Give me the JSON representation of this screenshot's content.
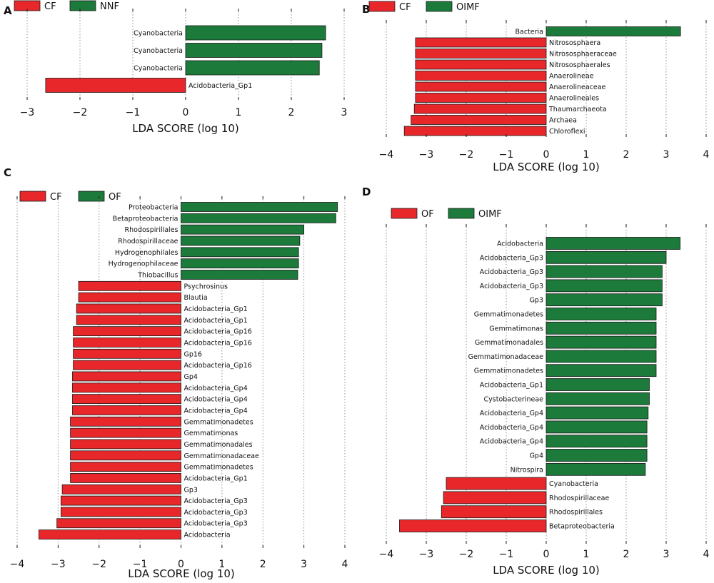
{
  "colors": {
    "negative": "#e8272b",
    "positive": "#1c7a3a",
    "stroke": "#1a1a1a",
    "grid": "#888888"
  },
  "chart_data": [
    {
      "type": "bar",
      "orientation": "horizontal",
      "panel": "A",
      "xlabel": "LDA SCORE (log 10)",
      "xlim": [
        -3,
        3
      ],
      "xticks": [
        -3,
        -2,
        -1,
        0,
        1,
        2,
        3
      ],
      "xtick_labels": [
        "−3",
        "−2",
        "−1",
        "0",
        "1",
        "2",
        "3"
      ],
      "legend": [
        {
          "label": "CF",
          "color": "#e8272b"
        },
        {
          "label": "NNF",
          "color": "#1c7a3a"
        }
      ],
      "categories": [
        "Cyanobacteria",
        "Cyanobacteria",
        "Cyanobacteria",
        "Acidobacteria_Gp1"
      ],
      "values": [
        2.65,
        2.58,
        2.53,
        -2.65
      ]
    },
    {
      "type": "bar",
      "orientation": "horizontal",
      "panel": "B",
      "xlabel": "LDA SCORE (log 10)",
      "xlim": [
        -4,
        4
      ],
      "xticks": [
        -4,
        -3,
        -2,
        -1,
        0,
        1,
        2,
        3,
        4
      ],
      "xtick_labels": [
        "−4",
        "−3",
        "−2",
        "−1",
        "0",
        "1",
        "2",
        "3",
        "4"
      ],
      "legend": [
        {
          "label": "CF",
          "color": "#e8272b"
        },
        {
          "label": "OIMF",
          "color": "#1c7a3a"
        }
      ],
      "categories": [
        "Bacteria",
        "Nitrososphaera",
        "Nitrososphaeraceae",
        "Nitrososphaerales",
        "Anaerolineae",
        "Anaerolineaceae",
        "Anaerolineales",
        "Thaumarchaeota",
        "Archaea",
        "Chloroflexi"
      ],
      "values": [
        3.36,
        -3.27,
        -3.27,
        -3.27,
        -3.27,
        -3.27,
        -3.27,
        -3.3,
        -3.38,
        -3.55
      ]
    },
    {
      "type": "bar",
      "orientation": "horizontal",
      "panel": "C",
      "xlabel": "LDA SCORE (log 10)",
      "xlim": [
        -4,
        4
      ],
      "xticks": [
        -4,
        -3,
        -2,
        -1,
        0,
        1,
        2,
        3,
        4
      ],
      "xtick_labels": [
        "−4",
        "−3",
        "−2",
        "−1",
        "0",
        "1",
        "2",
        "3",
        "4"
      ],
      "legend": [
        {
          "label": "CF",
          "color": "#e8272b"
        },
        {
          "label": "OF",
          "color": "#1c7a3a"
        }
      ],
      "categories": [
        "Proteobacteria",
        "Betaproteobacteria",
        "Rhodospirillales",
        "Rhodospirillaceae",
        "Hydrogenophilales",
        "Hydrogenophilaceae",
        "Thiobacillus",
        "Psychrosinus",
        "Blautia",
        "Acidobacteria_Gp1",
        "Acidobacteria_Gp1",
        "Acidobacteria_Gp16",
        "Acidobacteria_Gp16",
        "Gp16",
        "Acidobacteria_Gp16",
        "Gp4",
        "Acidobacteria_Gp4",
        "Acidobacteria_Gp4",
        "Acidobacteria_Gp4",
        "Gemmatimonadetes",
        "Gemmatimonas",
        "Gemmatimonadales",
        "Gemmatimonadaceae",
        "Gemmatimonadetes",
        "Acidobacteria_Gp1",
        "Gp3",
        "Acidobacteria_Gp3",
        "Acidobacteria_Gp3",
        "Acidobacteria_Gp3",
        "Acidobacteria"
      ],
      "values": [
        3.82,
        3.78,
        3.0,
        2.9,
        2.87,
        2.87,
        2.85,
        -2.5,
        -2.5,
        -2.55,
        -2.55,
        -2.63,
        -2.63,
        -2.63,
        -2.63,
        -2.65,
        -2.65,
        -2.65,
        -2.65,
        -2.7,
        -2.7,
        -2.7,
        -2.7,
        -2.7,
        -2.7,
        -2.9,
        -2.93,
        -2.93,
        -3.03,
        -3.47
      ]
    },
    {
      "type": "bar",
      "orientation": "horizontal",
      "panel": "D",
      "xlabel": "LDA SCORE (log 10)",
      "xlim": [
        -4,
        4
      ],
      "xticks": [
        -4,
        -3,
        -2,
        -1,
        0,
        1,
        2,
        3,
        4
      ],
      "xtick_labels": [
        "−4",
        "−3",
        "−2",
        "−1",
        "0",
        "1",
        "2",
        "3",
        "4"
      ],
      "legend": [
        {
          "label": "OF",
          "color": "#e8272b"
        },
        {
          "label": "OIMF",
          "color": "#1c7a3a"
        }
      ],
      "categories": [
        "Acidobacteria",
        "Acidobacteria_Gp3",
        "Acidobacteria_Gp3",
        "Acidobacteria_Gp3",
        "Gp3",
        "Gemmatimonadetes",
        "Gemmatimonas",
        "Gemmatimonadales",
        "Gemmatimonadaceae",
        "Gemmatimonadetes",
        "Acidobacteria_Gp1",
        "Cystobacterineae",
        "Acidobacteria_Gp4",
        "Acidobacteria_Gp4",
        "Acidobacteria_Gp4",
        "Gp4",
        "Nitrospira",
        "Cyanobacteria",
        "Rhodospirillaceae",
        "Rhodospirillales",
        "Betaproteobacteria"
      ],
      "values": [
        3.35,
        3.0,
        2.9,
        2.9,
        2.9,
        2.75,
        2.75,
        2.75,
        2.75,
        2.75,
        2.58,
        2.58,
        2.55,
        2.52,
        2.52,
        2.52,
        2.48,
        -2.5,
        -2.57,
        -2.62,
        -3.67
      ]
    }
  ]
}
